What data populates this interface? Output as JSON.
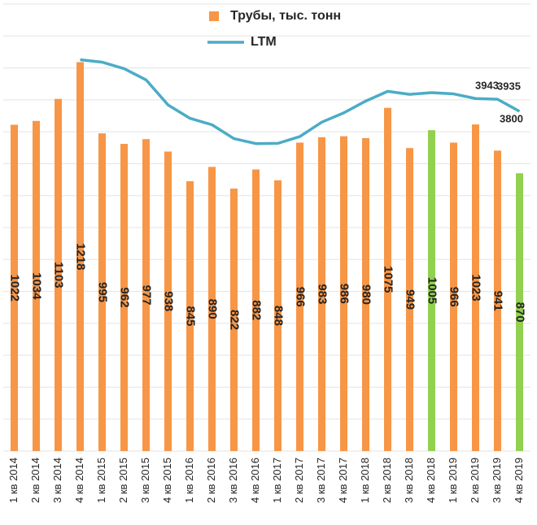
{
  "chart_data": {
    "type": "bar-line",
    "categories": [
      "1 кв 2014",
      "2 кв 2014",
      "3 кв 2014",
      "4 кв 2014",
      "1 кв 2015",
      "2 кв 2015",
      "3 кв 2015",
      "4 кв 2015",
      "1 кв 2016",
      "2 кв 2016",
      "3 кв 2016",
      "4 кв 2016",
      "1 кв 2017",
      "2 кв 2017",
      "3 кв 2017",
      "4 кв 2017",
      "1 кв 2018",
      "2 кв 2018",
      "3 кв 2018",
      "4 кв 2018",
      "1 кв 2019",
      "2 кв 2019",
      "3 кв 2019",
      "4 кв 2019"
    ],
    "series": [
      {
        "name": "Трубы, тыс. тонн",
        "type": "bar",
        "color": "#f79646",
        "colors": [
          "#f79646",
          "#f79646",
          "#f79646",
          "#f79646",
          "#f79646",
          "#f79646",
          "#f79646",
          "#f79646",
          "#f79646",
          "#f79646",
          "#f79646",
          "#f79646",
          "#f79646",
          "#f79646",
          "#f79646",
          "#f79646",
          "#f79646",
          "#f79646",
          "#f79646",
          "#92d050",
          "#f79646",
          "#f79646",
          "#f79646",
          "#92d050"
        ],
        "values": [
          1022,
          1034,
          1103,
          1218,
          995,
          962,
          977,
          938,
          845,
          890,
          822,
          882,
          848,
          966,
          983,
          986,
          980,
          1075,
          949,
          1005,
          966,
          1023,
          941,
          870
        ]
      },
      {
        "name": "LTM",
        "type": "line",
        "axis": "y2",
        "color": "#4bacc6",
        "values": [
          null,
          null,
          null,
          4377,
          4350,
          4278,
          4152,
          3872,
          3722,
          3650,
          3495,
          3439,
          3442,
          3518,
          3679,
          3783,
          3915,
          4024,
          3990,
          4009,
          3995,
          3943,
          3935,
          3800
        ],
        "value_labels": [
          null,
          null,
          null,
          null,
          null,
          null,
          null,
          null,
          null,
          null,
          null,
          null,
          null,
          null,
          null,
          null,
          null,
          null,
          null,
          null,
          null,
          "3943",
          "3935",
          "3800"
        ]
      }
    ],
    "ylim": [
      0,
      1400
    ],
    "yticks": [
      0,
      100,
      200,
      300,
      400,
      500,
      600,
      700,
      800,
      900,
      1000,
      1100,
      1200,
      1300,
      1400
    ],
    "y2lim": [
      0,
      5000
    ],
    "grid": true
  }
}
